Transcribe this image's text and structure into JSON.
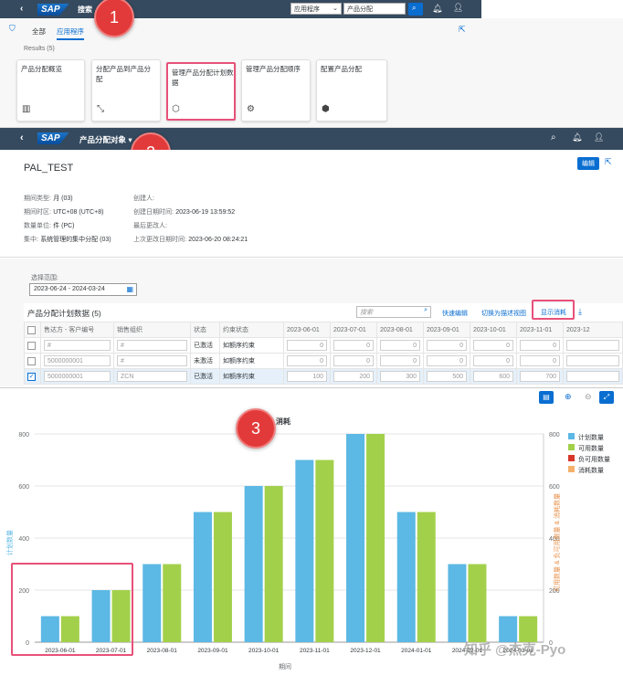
{
  "section1": {
    "shell": {
      "search_label": "搜索",
      "scope_value": "应用程序",
      "search_value": "产品分配"
    },
    "tabs": [
      {
        "label": "全部"
      },
      {
        "label": "应用程序"
      }
    ],
    "results": "Results (5)",
    "tiles": [
      {
        "title": "产品分配概览",
        "icon": "bar-chart-icon"
      },
      {
        "title": "分配产品到产品分配",
        "icon": "assign-icon"
      },
      {
        "title": "管理产品分配计划数据",
        "icon": "cube-icon"
      },
      {
        "title": "管理产品分配顺序",
        "icon": "group-icon"
      },
      {
        "title": "配置产品分配",
        "icon": "config-icon"
      }
    ]
  },
  "step_labels": [
    "1",
    "2",
    "3"
  ],
  "section2": {
    "shell": {
      "title": "产品分配对象 ▾"
    },
    "object_title": "PAL_TEST",
    "edit_button": "编辑",
    "fields_left": [
      {
        "label": "期间类型:",
        "value": "月 (03)"
      },
      {
        "label": "期间时区:",
        "value": "UTC+08 (UTC+8)"
      },
      {
        "label": "数量单位:",
        "value": "件 (PC)"
      },
      {
        "label": "集中:",
        "value": "系统管理的集中分配 (03)"
      }
    ],
    "fields_right": [
      {
        "label": "创建人:",
        "value": ""
      },
      {
        "label": "创建日期时间:",
        "value": "2023-06-19 13:59:52"
      },
      {
        "label": "最后更改人:",
        "value": ""
      },
      {
        "label": "上次更改日期时间:",
        "value": "2023-06-20 08:24:21"
      }
    ],
    "range_label": "选择范围:",
    "range_value": "2023-06-24 - 2024-03-24",
    "table_title": "产品分配计划数据 (5)",
    "search_placeholder": "搜索",
    "quick_edit": "快速编辑",
    "switch_view": "切换为描述视图",
    "show_consumption": "显示消耗",
    "columns": [
      "售达方 - 客户编号",
      "销售组织",
      "状态",
      "约束状态",
      "2023-06-01",
      "2023-07-01",
      "2023-08-01",
      "2023-09-01",
      "2023-10-01",
      "2023-11-01",
      "2023-12"
    ],
    "rows": [
      {
        "cust": "#",
        "org": "#",
        "status": "已激活",
        "constraint": "如额序约束",
        "vals": [
          "0",
          "0",
          "0",
          "0",
          "0",
          "0"
        ],
        "checked": false
      },
      {
        "cust": "5000000001",
        "org": "#",
        "status": "未激活",
        "constraint": "如额序约束",
        "vals": [
          "0",
          "0",
          "0",
          "0",
          "0",
          "0"
        ],
        "checked": false
      },
      {
        "cust": "5000000001",
        "org": "ZCN",
        "status": "已激活",
        "constraint": "如额序约束",
        "vals": [
          "100",
          "200",
          "300",
          "500",
          "600",
          "700"
        ],
        "checked": true
      }
    ]
  },
  "section3": {
    "chart_data": {
      "type": "bar",
      "title": "消耗",
      "xlabel": "期间",
      "ylabel": "计划数量",
      "y2label": "可用数量 & 负可用数量 & 消耗数量",
      "ylim": [
        0,
        800
      ],
      "yticks": [
        "800",
        "600",
        "400",
        "200",
        "0"
      ],
      "categories": [
        "2023-06-01",
        "2023-07-01",
        "2023-08-01",
        "2023-09-01",
        "2023-10-01",
        "2023-11-01",
        "2023-12-01",
        "2024-01-01",
        "2024-02-01",
        "2024-03-01"
      ],
      "series": [
        {
          "name": "计划数量",
          "color": "#5cb8e4",
          "values": [
            100,
            200,
            300,
            500,
            600,
            700,
            800,
            500,
            300,
            100
          ]
        },
        {
          "name": "可用数量",
          "color": "#a3d04b",
          "values": [
            100,
            200,
            300,
            500,
            600,
            700,
            800,
            500,
            300,
            100
          ]
        }
      ],
      "legend": [
        {
          "name": "计划数量",
          "color": "#5cb8e4"
        },
        {
          "name": "可用数量",
          "color": "#a3d04b"
        },
        {
          "name": "负可用数量",
          "color": "#d9362b"
        },
        {
          "name": "消耗数量",
          "color": "#f5b06b"
        }
      ]
    }
  },
  "watermark": "知乎 @杰克-Pyo"
}
